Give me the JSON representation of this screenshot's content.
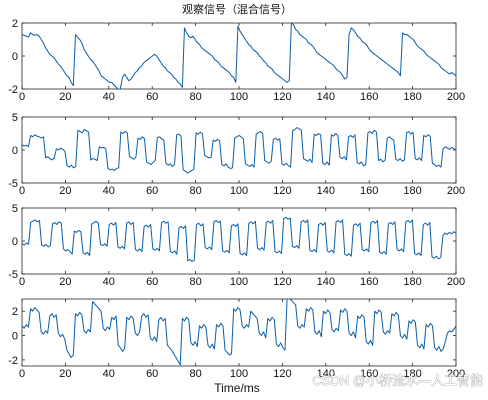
{
  "chart_data": [
    {
      "type": "line",
      "title": "观察信号（混合信号）",
      "xlim": [
        0,
        200
      ],
      "ylim": [
        -2,
        2
      ],
      "xticks": [
        0,
        20,
        40,
        60,
        80,
        100,
        120,
        140,
        160,
        180,
        200
      ],
      "yticks": [
        -2,
        0,
        2
      ],
      "line_color": "#0a5ea8",
      "grid": false,
      "series": [
        {
          "values": [
            1.3,
            1.25,
            1.2,
            1.15,
            1.4,
            1.3,
            1.25,
            1.3,
            1.2,
            1.0,
            0.8,
            0.5,
            0.3,
            0.1,
            0.0,
            -0.1,
            -0.3,
            -0.5,
            -0.6,
            -0.8,
            -1.0,
            -1.2,
            -1.3,
            -1.6,
            -1.8,
            1.3,
            1.15,
            1.0,
            0.8,
            0.4,
            0.2,
            0.0,
            -0.2,
            -0.3,
            -0.5,
            -0.7,
            -0.9,
            -1.2,
            -1.3,
            -1.4,
            -1.5,
            -1.6,
            -1.6,
            -1.75,
            -1.9,
            -2.0,
            -2.0,
            -1.3,
            -1.1,
            -1.3,
            -1.5,
            -1.4,
            -1.2,
            -1.0,
            -0.9,
            -0.7,
            -0.6,
            -0.4,
            -0.3,
            -0.2,
            -0.1,
            0.0,
            0.1,
            0.0,
            -0.2,
            -0.4,
            -0.6,
            -0.7,
            -0.9,
            -1.0,
            -1.1,
            -1.3,
            -1.4,
            -1.6,
            -1.7,
            -1.9,
            1.7,
            1.4,
            1.2,
            1.1,
            1.2,
            1.0,
            0.8,
            0.7,
            0.5,
            0.4,
            0.3,
            0.2,
            0.1,
            0.0,
            -0.2,
            -0.3,
            -0.4,
            -0.6,
            -0.7,
            -0.8,
            -0.9,
            -1.0,
            -1.2,
            -1.3,
            -1.6,
            1.8,
            1.5,
            1.3,
            1.1,
            0.9,
            0.7,
            0.6,
            0.4,
            0.3,
            0.2,
            0.0,
            -0.1,
            -0.3,
            -0.4,
            -0.6,
            -0.7,
            -0.8,
            -1.0,
            -1.1,
            -1.2,
            -1.3,
            -1.4,
            -1.5,
            -1.6,
            -1.5,
            2.0,
            1.9,
            1.6,
            1.5,
            1.3,
            1.2,
            1.1,
            1.0,
            0.8,
            0.7,
            0.6,
            0.4,
            0.2,
            0.1,
            0.0,
            -0.1,
            -0.2,
            -0.3,
            -0.4,
            -0.5,
            -0.6,
            -0.8,
            -0.9,
            -1.0,
            -1.2,
            -1.4,
            -1.3,
            1.3,
            1.7,
            1.6,
            1.4,
            1.2,
            1.1,
            0.9,
            0.8,
            0.7,
            0.5,
            0.3,
            0.2,
            0.1,
            0.0,
            -0.1,
            -0.2,
            -0.3,
            -0.4,
            -0.5,
            -0.6,
            -0.7,
            -0.8,
            -0.9,
            -1.0,
            -1.2,
            1.4,
            1.3,
            1.3,
            1.2,
            1.1,
            1.0,
            0.8,
            0.6,
            0.5,
            0.4,
            0.3,
            0.1,
            0.0,
            -0.1,
            -0.2,
            -0.3,
            -0.4,
            -0.5,
            -0.7,
            -0.8,
            -0.9,
            -1.0,
            -1.1,
            -1.0,
            -1.1,
            -1.2
          ]
        }
      ]
    },
    {
      "type": "line",
      "xlim": [
        0,
        200
      ],
      "ylim": [
        -5,
        5
      ],
      "xticks": [
        0,
        20,
        40,
        60,
        80,
        100,
        120,
        140,
        160,
        180,
        200
      ],
      "yticks": [
        -5,
        0,
        5
      ],
      "line_color": "#0a5ea8",
      "grid": false,
      "series": [
        {
          "values": [
            0.8,
            0.6,
            0.7,
            0.5,
            2.2,
            2.0,
            2.3,
            2.1,
            2.0,
            1.8,
            2.0,
            -1.2,
            -1.0,
            -1.3,
            -1.5,
            -1.2,
            0.2,
            0.0,
            0.3,
            0.1,
            -0.2,
            -2.4,
            -2.6,
            -2.3,
            -2.7,
            -2.5,
            3.0,
            2.8,
            2.6,
            3.1,
            2.9,
            2.7,
            -1.5,
            -1.3,
            -1.4,
            -1.6,
            0.5,
            0.3,
            0.4,
            0.2,
            -2.8,
            -3.0,
            -2.9,
            -3.1,
            -2.8,
            -2.7,
            2.7,
            2.5,
            2.8,
            2.6,
            -1.0,
            -1.2,
            -1.4,
            -1.1,
            1.8,
            1.6,
            2.0,
            1.7,
            -1.8,
            -2.0,
            -2.2,
            -1.9,
            -1.6,
            1.9,
            2.0,
            1.7,
            1.5,
            -2.0,
            -2.3,
            -2.1,
            -2.5,
            -2.2,
            2.3,
            2.4,
            2.1,
            -3.0,
            -3.2,
            -3.5,
            -3.3,
            -3.1,
            -2.9,
            2.6,
            2.4,
            2.7,
            2.5,
            -0.8,
            -1.0,
            -1.2,
            -1.1,
            1.5,
            1.3,
            1.6,
            1.4,
            -2.2,
            -2.4,
            -2.1,
            -2.6,
            -2.8,
            -2.7,
            1.8,
            2.0,
            2.2,
            2.0,
            1.7,
            -2.1,
            -2.3,
            -2.5,
            -2.2,
            -2.6,
            2.4,
            2.6,
            2.8,
            2.5,
            -1.6,
            -1.8,
            -2.0,
            -1.7,
            1.6,
            1.8,
            1.5,
            1.7,
            -2.1,
            -2.3,
            -2.0,
            -2.4,
            -2.6,
            2.9,
            3.1,
            3.4,
            3.2,
            3.0,
            -1.3,
            -1.5,
            -1.7,
            -1.4,
            -1.9,
            2.4,
            2.2,
            2.5,
            2.3,
            -2.0,
            -2.2,
            -1.8,
            -2.3,
            2.3,
            2.1,
            2.5,
            2.2,
            -1.1,
            -1.3,
            -1.0,
            -1.5,
            2.0,
            2.2,
            1.9,
            2.3,
            -1.9,
            -2.1,
            -1.8,
            -2.4,
            -2.2,
            2.6,
            2.8,
            2.5,
            3.0,
            2.7,
            -1.6,
            -1.4,
            -1.8,
            -1.5,
            1.8,
            2.0,
            1.7,
            1.5,
            -1.4,
            -1.6,
            -1.3,
            -1.7,
            -1.5,
            2.6,
            2.8,
            2.4,
            2.7,
            -1.3,
            -1.5,
            -1.2,
            -1.6,
            2.2,
            2.0,
            2.3,
            2.1,
            -2.0,
            -2.2,
            -2.5,
            -2.3,
            -2.6,
            0.2,
            0.5,
            0.3,
            0.1,
            0.4,
            0.2,
            0.0
          ]
        }
      ]
    },
    {
      "type": "line",
      "xlim": [
        0,
        200
      ],
      "ylim": [
        -5,
        5
      ],
      "xticks": [
        0,
        20,
        40,
        60,
        80,
        100,
        120,
        140,
        160,
        180,
        200
      ],
      "yticks": [
        -5,
        0,
        5
      ],
      "line_color": "#0a5ea8",
      "grid": false,
      "series": [
        {
          "values": [
            -0.4,
            -0.6,
            -0.3,
            -0.5,
            2.8,
            3.0,
            3.2,
            2.9,
            3.1,
            -0.6,
            -0.8,
            -0.5,
            -0.9,
            -0.7,
            2.6,
            2.8,
            2.5,
            2.9,
            2.7,
            -1.2,
            -1.5,
            -1.3,
            -1.6,
            -2.0,
            1.5,
            1.3,
            1.6,
            1.4,
            -1.8,
            -2.0,
            -1.7,
            -2.2,
            2.6,
            2.8,
            3.0,
            2.7,
            -0.5,
            -0.7,
            -0.4,
            -0.8,
            2.5,
            2.7,
            2.4,
            2.8,
            -0.9,
            -1.1,
            -0.8,
            -1.2,
            2.7,
            2.9,
            2.5,
            2.8,
            -1.3,
            -1.5,
            -1.2,
            -1.6,
            2.2,
            2.4,
            2.1,
            2.5,
            -1.2,
            -1.4,
            -1.1,
            -1.5,
            2.8,
            3.0,
            2.7,
            2.9,
            -1.6,
            -1.8,
            -1.5,
            -2.0,
            2.0,
            2.2,
            1.9,
            2.3,
            -3.0,
            -2.8,
            -3.1,
            -2.9,
            2.5,
            2.7,
            2.3,
            2.6,
            -1.0,
            -1.2,
            -0.9,
            -1.3,
            2.9,
            3.1,
            2.8,
            3.0,
            -1.5,
            -1.7,
            -1.4,
            -1.8,
            2.3,
            2.5,
            2.2,
            2.6,
            -1.9,
            -2.1,
            -1.8,
            -2.2,
            2.7,
            2.9,
            2.6,
            3.0,
            -1.1,
            -1.3,
            -1.0,
            -1.4,
            2.8,
            3.0,
            2.7,
            3.1,
            -1.6,
            -1.8,
            -1.5,
            -1.9,
            3.4,
            3.6,
            3.3,
            3.5,
            -0.8,
            -1.0,
            -0.7,
            -1.1,
            2.9,
            3.1,
            2.8,
            3.2,
            -1.4,
            -1.6,
            -1.3,
            -1.7,
            2.5,
            2.7,
            2.4,
            2.8,
            -1.5,
            -1.7,
            -1.4,
            -1.8,
            2.9,
            3.1,
            2.8,
            3.2,
            -2.0,
            -2.2,
            -1.9,
            -2.3,
            2.4,
            2.6,
            2.3,
            2.7,
            -1.3,
            -1.5,
            -1.2,
            -1.6,
            2.8,
            3.0,
            2.7,
            3.1,
            -1.7,
            -1.9,
            -1.6,
            -2.0,
            2.6,
            2.8,
            2.5,
            2.9,
            -1.3,
            -1.5,
            -1.2,
            -1.6,
            2.9,
            3.1,
            2.8,
            3.2,
            -1.9,
            -2.1,
            -1.8,
            -2.2,
            2.5,
            2.7,
            2.4,
            2.8,
            -2.4,
            -2.6,
            -2.3,
            -2.7,
            -2.5,
            0.8,
            1.2,
            1.0,
            1.3,
            1.1,
            1.4,
            1.2
          ]
        }
      ]
    },
    {
      "type": "line",
      "xlim": [
        0,
        200
      ],
      "ylim": [
        -2.5,
        3
      ],
      "xticks": [
        0,
        20,
        40,
        60,
        80,
        100,
        120,
        140,
        160,
        180,
        200
      ],
      "yticks": [
        -2,
        0,
        2
      ],
      "xlabel": "Time/ms",
      "line_color": "#0a5ea8",
      "grid": false,
      "series": [
        {
          "values": [
            0.8,
            0.6,
            0.9,
            0.7,
            2.2,
            2.0,
            2.3,
            2.1,
            1.9,
            0.3,
            0.1,
            0.4,
            0.2,
            1.6,
            1.8,
            1.5,
            1.7,
            0.2,
            -0.1,
            0.1,
            -0.3,
            -1.2,
            -1.5,
            -1.8,
            -1.6,
            1.8,
            1.6,
            1.9,
            1.7,
            0.4,
            0.2,
            0.5,
            0.3,
            2.8,
            2.6,
            2.4,
            2.2,
            2.0,
            0.6,
            0.4,
            0.7,
            0.5,
            1.5,
            1.3,
            1.6,
            -0.8,
            -1.0,
            -1.3,
            -1.1,
            1.5,
            1.3,
            1.6,
            1.4,
            0.2,
            0.0,
            0.3,
            1.6,
            1.8,
            1.5,
            1.7,
            -0.2,
            -0.4,
            -0.1,
            -0.5,
            1.3,
            1.5,
            1.2,
            1.4,
            -0.8,
            -1.0,
            -1.2,
            -1.5,
            -1.8,
            -2.1,
            -2.4,
            1.4,
            1.2,
            1.5,
            1.3,
            -0.6,
            -0.8,
            -0.5,
            -0.9,
            0.8,
            0.6,
            0.9,
            0.7,
            -0.8,
            -1.0,
            -0.7,
            -1.1,
            0.9,
            0.7,
            1.0,
            0.8,
            -1.2,
            -1.4,
            -1.6,
            -1.5,
            2.2,
            2.0,
            2.3,
            2.1,
            0.8,
            0.6,
            0.9,
            0.7,
            2.0,
            1.8,
            1.6,
            1.4,
            0.2,
            0.0,
            0.3,
            -0.2,
            1.4,
            1.2,
            1.5,
            1.3,
            -0.7,
            -0.9,
            -0.6,
            -1.0,
            -1.2,
            3.3,
            3.1,
            2.9,
            2.7,
            2.5,
            0.8,
            0.6,
            0.9,
            0.7,
            2.2,
            2.0,
            2.3,
            2.1,
            0.3,
            0.1,
            0.4,
            -0.1,
            2.0,
            1.8,
            2.1,
            1.9,
            0.5,
            0.3,
            0.6,
            0.4,
            2.1,
            1.9,
            2.2,
            2.0,
            0.2,
            0.0,
            0.3,
            -0.2,
            1.6,
            1.4,
            1.7,
            1.5,
            -0.5,
            -0.7,
            -0.4,
            -0.8,
            2.0,
            1.8,
            2.1,
            1.9,
            0.3,
            0.1,
            0.4,
            0.2,
            1.8,
            1.6,
            1.9,
            1.7,
            0.0,
            -0.2,
            0.1,
            -0.3,
            1.2,
            1.0,
            1.3,
            1.1,
            -0.8,
            -1.0,
            -0.7,
            -1.1,
            0.9,
            0.7,
            1.0,
            0.8,
            -1.0,
            -1.2,
            -0.9,
            -1.3,
            -1.1,
            -0.5,
            0.2,
            0.4,
            0.3,
            0.5,
            0.8
          ]
        }
      ]
    }
  ],
  "watermark": "CSDN @小桥流水---人工智能"
}
